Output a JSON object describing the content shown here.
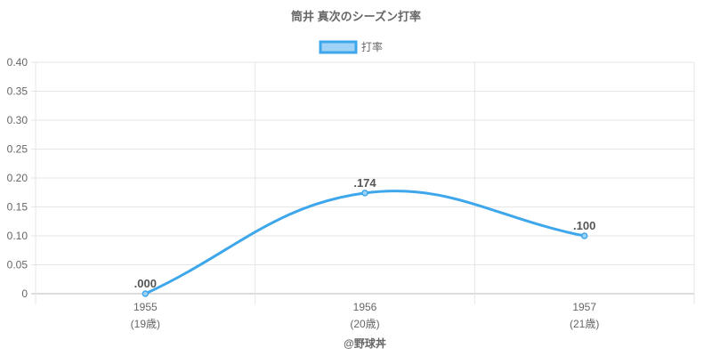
{
  "chart_data": {
    "type": "line",
    "title": "筒井 真次のシーズン打率",
    "categories": [
      "1955",
      "1956",
      "1957"
    ],
    "category_sublabels": [
      "(19歳)",
      "(20歳)",
      "(21歳)"
    ],
    "series": [
      {
        "name": "打率",
        "values": [
          0.0,
          0.174,
          0.1
        ],
        "data_labels": [
          ".000",
          ".174",
          ".100"
        ]
      }
    ],
    "ylim": [
      0,
      0.4
    ],
    "yticks": [
      "0",
      "0.05",
      "0.10",
      "0.15",
      "0.20",
      "0.25",
      "0.30",
      "0.35",
      "0.40"
    ],
    "grid": true,
    "legend": "top",
    "line_color": "#3ea7ec",
    "fill_color": "#a0d2f5"
  },
  "credit": "@野球丼"
}
